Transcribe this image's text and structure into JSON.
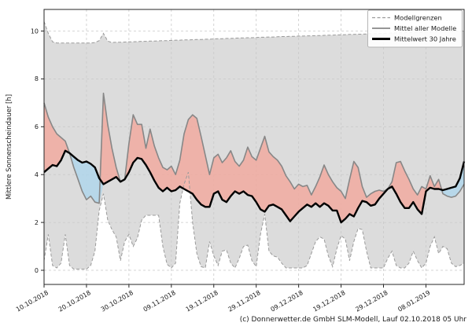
{
  "chart_data": {
    "type": "area",
    "title": "",
    "ylabel": "Mittlere Sonnenscheindauer [h]",
    "xlabel": "",
    "grid": true,
    "ylim": [
      -0.6,
      10.9
    ],
    "yticks": [
      0,
      2,
      4,
      6,
      8,
      10
    ],
    "x_tick_days": [
      0,
      10,
      20,
      30,
      40,
      50,
      60,
      70,
      80,
      90
    ],
    "x_tick_labels": [
      "10.10.2018",
      "20.10.2018",
      "30.10.2018",
      "09.11.2018",
      "19.11.2018",
      "29.11.2018",
      "09.12.2018",
      "19.12.2018",
      "29.12.2018",
      "08.01.2019"
    ],
    "legend": {
      "position": "top-right",
      "entries": [
        {
          "label": "Modellgrenzen",
          "style": "dashed-gray"
        },
        {
          "label": "Mittel aller Modelle",
          "style": "solid-gray"
        },
        {
          "label": "Mittelwert 30 Jahre",
          "style": "solid-black-thick"
        }
      ]
    },
    "colors": {
      "band": "#dcdcdc",
      "bound_line": "#9a9a9a",
      "grid": "#c9c9c9",
      "above_fill": "#f2a89d",
      "below_fill": "#afd5ec",
      "model_mean_line": "#878787",
      "mean30_line": "#000000",
      "spine": "#262626",
      "tick_text": "#1a1a1a"
    },
    "series": [
      {
        "id": "upper",
        "name": "Modellgrenzen (obere Grenze)",
        "values": [
          10.4,
          9.9,
          9.55,
          9.5,
          9.5,
          9.5,
          9.5,
          9.5,
          9.5,
          9.5,
          9.5,
          9.5,
          9.52,
          9.6,
          9.9,
          9.58,
          9.52,
          9.53,
          9.53,
          9.54,
          9.55,
          9.55,
          9.56,
          9.57,
          9.57,
          9.58,
          9.58,
          9.59,
          9.6,
          9.6,
          9.61,
          9.62,
          9.62,
          9.63,
          9.63,
          9.64,
          9.65,
          9.65,
          9.66,
          9.66,
          9.67,
          9.68,
          9.68,
          9.69,
          9.69,
          9.7,
          9.71,
          9.71,
          9.72,
          9.72,
          9.73,
          9.74,
          9.74,
          9.75,
          9.75,
          9.76,
          9.77,
          9.77,
          9.78,
          9.78,
          9.79,
          9.79,
          9.8,
          9.8,
          9.81,
          9.81,
          9.82,
          9.83,
          9.83,
          9.84,
          9.84,
          9.85,
          9.86,
          9.86,
          9.87,
          9.87,
          9.88,
          9.89,
          9.89,
          9.9,
          9.9,
          9.91,
          9.92,
          9.92,
          9.93,
          9.93,
          9.94,
          9.94,
          9.95,
          9.95,
          9.96,
          9.96,
          9.97,
          9.97,
          9.98,
          9.98,
          9.99,
          9.99,
          10.0,
          10.0
        ]
      },
      {
        "id": "lower",
        "name": "Modellgrenzen (untere Grenze)",
        "values": [
          0.4,
          1.5,
          0.2,
          0.1,
          0.3,
          1.5,
          0.2,
          0.05,
          0.05,
          0.05,
          0.05,
          0.2,
          0.8,
          2.5,
          3.2,
          2.1,
          1.7,
          1.4,
          0.4,
          1.2,
          1.5,
          1.0,
          1.35,
          2.1,
          2.3,
          2.3,
          2.3,
          2.3,
          1.0,
          0.25,
          0.1,
          0.3,
          2.8,
          3.6,
          4.1,
          2.0,
          0.7,
          0.15,
          0.1,
          1.2,
          0.6,
          0.2,
          0.8,
          0.85,
          0.3,
          0.1,
          0.5,
          1.0,
          1.05,
          0.4,
          0.15,
          1.5,
          2.35,
          0.8,
          0.6,
          0.55,
          0.3,
          0.1,
          0.1,
          0.1,
          0.1,
          0.1,
          0.2,
          0.7,
          1.2,
          1.4,
          1.3,
          0.6,
          0.15,
          0.9,
          1.45,
          1.3,
          0.4,
          1.2,
          1.75,
          1.7,
          0.8,
          0.1,
          0.1,
          0.1,
          0.1,
          0.5,
          0.8,
          0.2,
          0.1,
          0.1,
          0.3,
          0.8,
          0.4,
          0.1,
          0.3,
          1.0,
          1.4,
          0.7,
          1.0,
          0.9,
          0.3,
          0.15,
          0.2,
          0.3
        ]
      },
      {
        "id": "model_mean",
        "name": "Mittel aller Modelle",
        "values": [
          7.0,
          6.4,
          6.0,
          5.7,
          5.55,
          5.4,
          4.9,
          4.3,
          3.8,
          3.3,
          2.95,
          3.1,
          2.85,
          2.8,
          7.4,
          6.1,
          5.1,
          4.3,
          3.7,
          3.8,
          5.3,
          6.5,
          6.1,
          6.1,
          5.1,
          5.9,
          5.2,
          4.7,
          4.3,
          4.2,
          4.35,
          4.0,
          4.6,
          5.7,
          6.3,
          6.5,
          6.35,
          5.6,
          4.8,
          4.0,
          4.7,
          4.85,
          4.5,
          4.7,
          5.0,
          4.55,
          4.35,
          4.6,
          5.15,
          4.75,
          4.6,
          5.1,
          5.6,
          4.95,
          4.75,
          4.6,
          4.35,
          3.95,
          3.7,
          3.4,
          3.6,
          3.5,
          3.55,
          3.15,
          3.5,
          3.9,
          4.4,
          4.0,
          3.7,
          3.45,
          3.3,
          3.0,
          3.8,
          4.55,
          4.3,
          3.5,
          3.05,
          3.2,
          3.3,
          3.35,
          3.3,
          3.4,
          3.7,
          4.5,
          4.55,
          4.15,
          3.8,
          3.4,
          3.15,
          3.5,
          3.4,
          3.95,
          3.5,
          3.8,
          3.2,
          3.1,
          3.05,
          3.1,
          3.3,
          3.6
        ]
      },
      {
        "id": "mean_30y",
        "name": "Mittelwert 30 Jahre",
        "values": [
          4.1,
          4.25,
          4.4,
          4.35,
          4.6,
          5.0,
          4.9,
          4.75,
          4.6,
          4.5,
          4.55,
          4.45,
          4.3,
          3.85,
          3.6,
          3.7,
          3.8,
          3.9,
          3.7,
          3.8,
          4.1,
          4.5,
          4.7,
          4.65,
          4.4,
          4.1,
          3.75,
          3.45,
          3.3,
          3.45,
          3.3,
          3.35,
          3.5,
          3.4,
          3.3,
          3.2,
          2.95,
          2.75,
          2.65,
          2.65,
          3.2,
          3.3,
          2.95,
          2.85,
          3.1,
          3.3,
          3.2,
          3.3,
          3.15,
          3.1,
          2.85,
          2.55,
          2.45,
          2.7,
          2.75,
          2.65,
          2.55,
          2.3,
          2.05,
          2.25,
          2.45,
          2.6,
          2.75,
          2.65,
          2.8,
          2.65,
          2.8,
          2.7,
          2.5,
          2.5,
          2.0,
          2.15,
          2.35,
          2.25,
          2.6,
          2.9,
          2.85,
          2.7,
          2.75,
          3.0,
          3.2,
          3.4,
          3.5,
          3.2,
          2.85,
          2.6,
          2.6,
          2.85,
          2.55,
          2.35,
          3.3,
          3.45,
          3.4,
          3.4,
          3.35,
          3.4,
          3.45,
          3.5,
          3.85,
          4.55
        ]
      }
    ]
  },
  "footer": {
    "credit": "(c) Donnerwetter.de GmbH SLM-Modell, Lauf 02.10.2018 05 Uhr"
  }
}
